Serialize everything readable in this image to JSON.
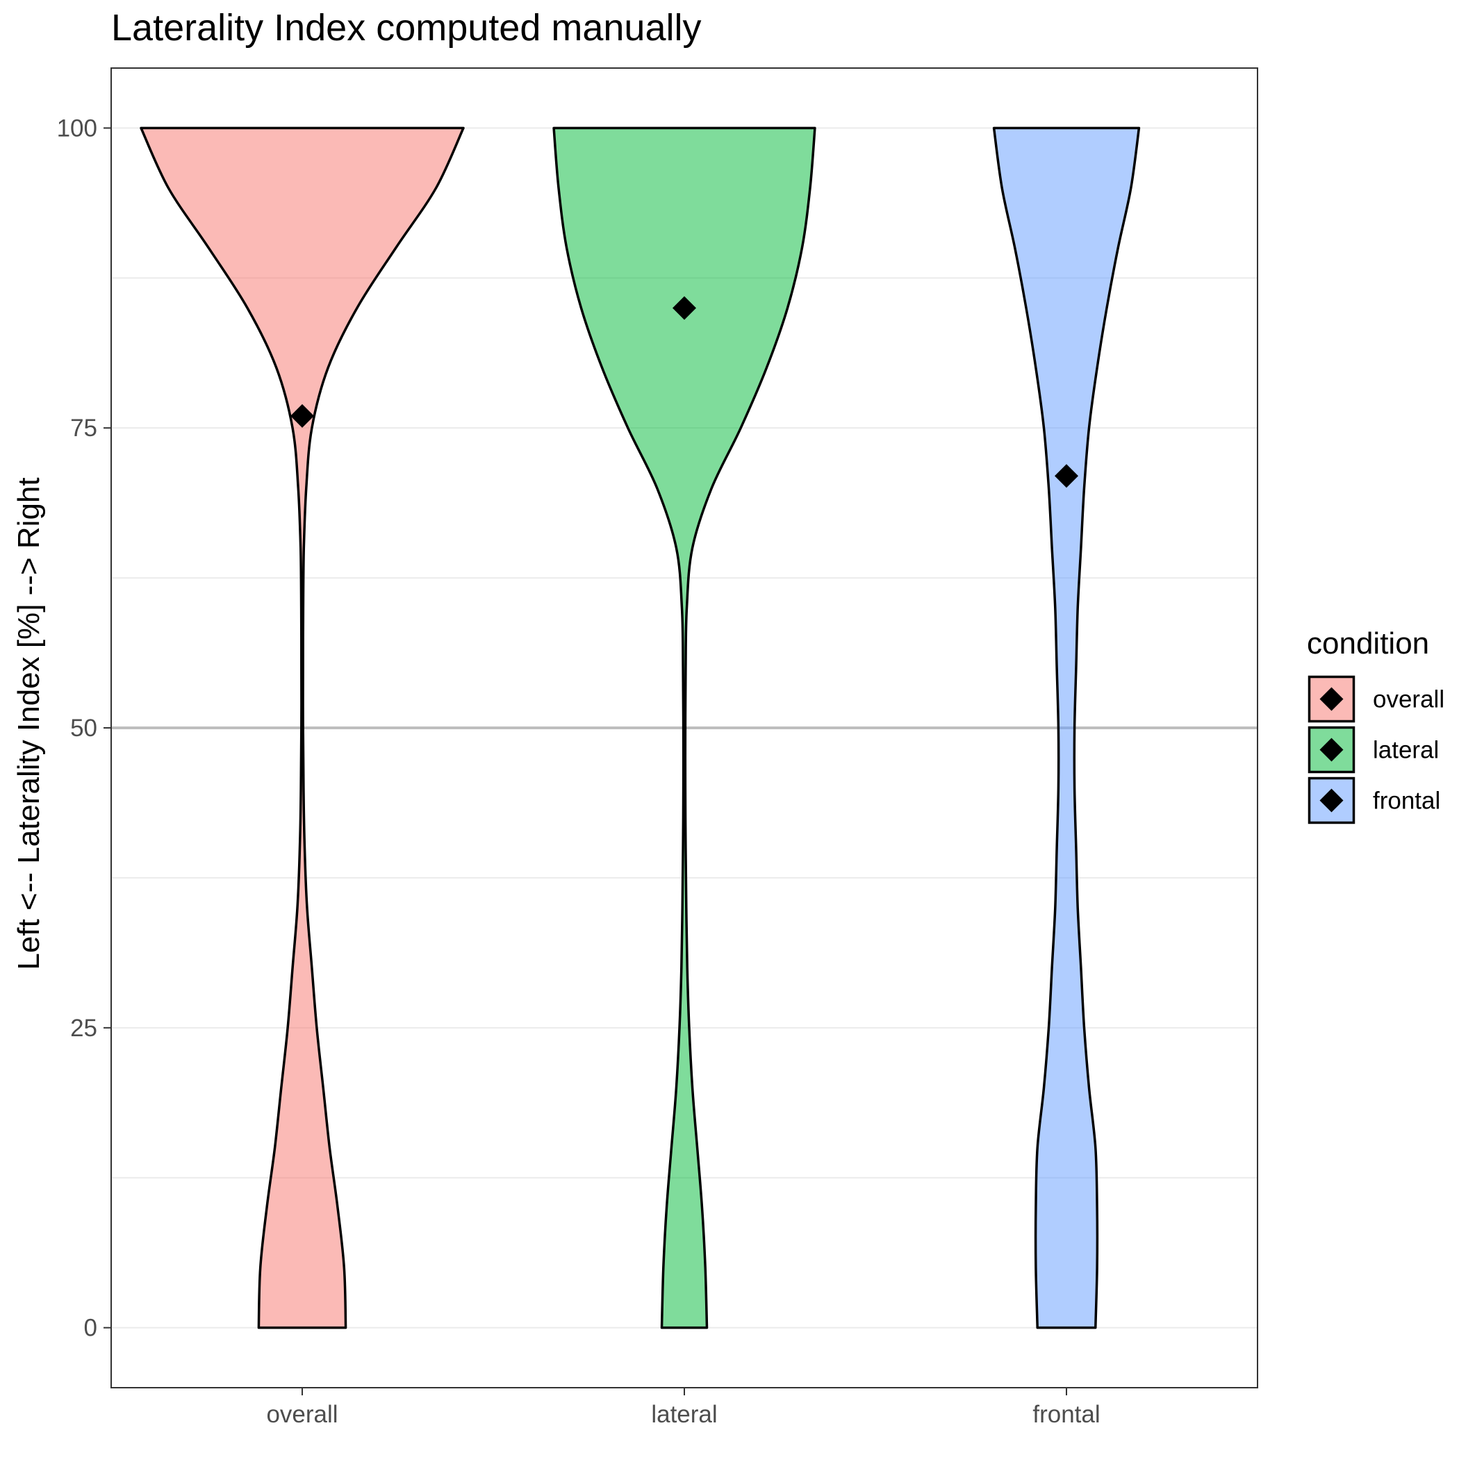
{
  "chart_data": {
    "type": "violin",
    "title": "Laterality Index computed manually",
    "xlabel": "",
    "ylabel": "Left <-- Laterality Index [%] --> Right",
    "categories": [
      "overall",
      "lateral",
      "frontal"
    ],
    "ylim": [
      -5,
      105
    ],
    "yticks": [
      0,
      25,
      50,
      75,
      100
    ],
    "ytick_labels": [
      "0",
      "25",
      "50",
      "75",
      "100"
    ],
    "grid": true,
    "reference_line_y": 50,
    "legend": {
      "title": "condition",
      "position": "right",
      "entries": [
        "overall",
        "lateral",
        "frontal"
      ]
    },
    "colors": {
      "overall": "#f8766d",
      "lateral": "#00ba38",
      "frontal": "#619cff"
    },
    "means": {
      "overall": 76,
      "lateral": 85,
      "frontal": 71
    },
    "density_y": [
      0,
      5,
      10,
      15,
      20,
      25,
      30,
      35,
      40,
      45,
      50,
      55,
      60,
      65,
      70,
      75,
      80,
      85,
      90,
      95,
      100
    ],
    "density": {
      "overall": [
        0.27,
        0.26,
        0.22,
        0.17,
        0.13,
        0.09,
        0.06,
        0.03,
        0.015,
        0.008,
        0.005,
        0.005,
        0.006,
        0.01,
        0.025,
        0.06,
        0.16,
        0.34,
        0.58,
        0.83,
        1.0
      ],
      "lateral": [
        0.14,
        0.13,
        0.11,
        0.08,
        0.05,
        0.03,
        0.018,
        0.012,
        0.008,
        0.006,
        0.006,
        0.008,
        0.015,
        0.05,
        0.17,
        0.35,
        0.51,
        0.64,
        0.73,
        0.78,
        0.81
      ],
      "frontal": [
        0.18,
        0.19,
        0.19,
        0.18,
        0.14,
        0.11,
        0.09,
        0.07,
        0.06,
        0.05,
        0.05,
        0.06,
        0.07,
        0.09,
        0.11,
        0.14,
        0.19,
        0.25,
        0.32,
        0.4,
        0.45
      ]
    }
  }
}
